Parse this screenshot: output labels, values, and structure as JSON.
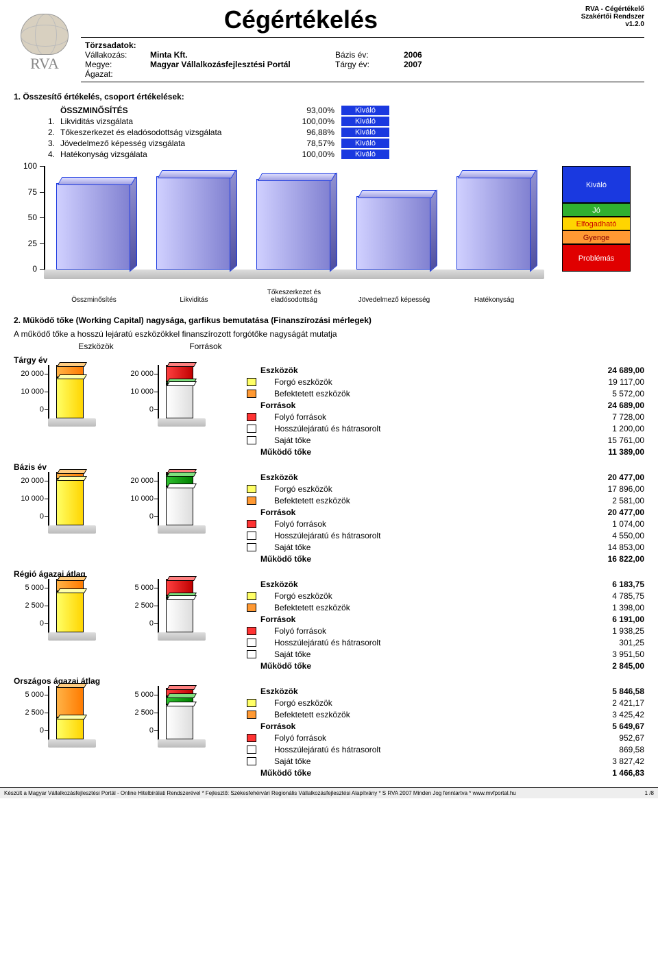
{
  "header": {
    "title": "Cégértékelés",
    "product_line1": "RVA - Cégértékelő",
    "product_line2": "Szakértői Rendszer",
    "version": "v1.2.0",
    "logotext": "RVA"
  },
  "meta": {
    "t_label": "Törzsadatok:",
    "r1l": "Vállakozás:",
    "r1v": "Minta Kft.",
    "r2l": "Megye:",
    "r2v": "Magyar Vállalkozásfejlesztési Portál",
    "r3l": "Ágazat:",
    "r3v": "",
    "r1l2": "Bázis év:",
    "r1v2": "2006",
    "r2l2": "Tárgy év:",
    "r2v2": "2007"
  },
  "section1": {
    "heading": "1. Összesítő értékelés, csoport értékelések:",
    "rows": [
      {
        "num": "",
        "name": "ÖSSZMINŐSÍTÉS",
        "pct": "93,00%",
        "rating": "Kiváló"
      },
      {
        "num": "1.",
        "name": "Likviditás vizsgálata",
        "pct": "100,00%",
        "rating": "Kiváló"
      },
      {
        "num": "2.",
        "name": "Tőkeszerkezet és eladósodottság vizsgálata",
        "pct": "96,88%",
        "rating": "Kiváló"
      },
      {
        "num": "3.",
        "name": "Jövedelmező képesség vizsgálata",
        "pct": "78,57%",
        "rating": "Kiváló"
      },
      {
        "num": "4.",
        "name": "Hatékonyság vizsgálata",
        "pct": "100,00%",
        "rating": "Kiváló"
      }
    ]
  },
  "bigchart": {
    "type": "bar",
    "yticks": [
      "100",
      "75",
      "50",
      "25",
      "0"
    ],
    "ylim": [
      0,
      100
    ],
    "categories": [
      "Összminősítés",
      "Likviditás",
      "Tőkeszerkezet és\neladósodottság",
      "Jövedelmező képesség",
      "Hatékonyság"
    ],
    "values": [
      93,
      100,
      96.88,
      78.57,
      100
    ],
    "bar_color": "#6b6be0",
    "legend": [
      {
        "label": "Kiváló",
        "h": 54,
        "bg": "#1a39e0"
      },
      {
        "label": "Jó",
        "h": 20,
        "bg": "#30b030"
      },
      {
        "label": "Elfogadható",
        "h": 20,
        "bg": "#ffd500",
        "fg": "#c00"
      },
      {
        "label": "Gyenge",
        "h": 20,
        "bg": "#ff9933",
        "fg": "#800"
      },
      {
        "label": "Problémás",
        "h": 40,
        "bg": "#e00000"
      }
    ]
  },
  "section2": {
    "heading": "2. Működő tőke (Working Capital) nagysága, garfikus bemutatása (Finanszírozási mérlegek)",
    "desc": "A működő tőke a hosszú lejáratú eszközökkel finanszírozott forgótőke nagyságát mutatja",
    "col1": "Eszközök",
    "col2": "Források"
  },
  "blocks": [
    {
      "title": "Tárgy év",
      "ticks": [
        "20 000",
        "10 000",
        "0"
      ],
      "ymax": 24689,
      "eszk": [
        {
          "cls": "orange",
          "v": 5572
        },
        {
          "cls": "yellow",
          "v": 19117
        }
      ],
      "forr": [
        {
          "cls": "red",
          "v": 7728
        },
        {
          "cls": "green",
          "v": 1200
        },
        {
          "cls": "white",
          "v": 15761
        }
      ],
      "rows": [
        {
          "bold": true,
          "lbl": "Eszközök",
          "val": "24 689,00"
        },
        {
          "sw": "sw-yellow",
          "ind": 1,
          "lbl": "Forgó eszközök",
          "val": "19 117,00"
        },
        {
          "sw": "sw-orange",
          "ind": 1,
          "lbl": "Befektetett eszközök",
          "val": "5 572,00"
        },
        {
          "bold": true,
          "lbl": "Források",
          "val": "24 689,00"
        },
        {
          "sw": "sw-red",
          "ind": 1,
          "lbl": "Folyó források",
          "val": "7 728,00"
        },
        {
          "sw": "sw-white",
          "ind": 1,
          "lbl": "Hosszúlejáratú és hátrasorolt",
          "val": "1 200,00"
        },
        {
          "sw": "sw-white",
          "ind": 1,
          "lbl": "Saját tőke",
          "val": "15 761,00"
        },
        {
          "bold": true,
          "lbl": "Működő tőke",
          "val": "11 389,00"
        }
      ]
    },
    {
      "title": "Bázis év",
      "ticks": [
        "20 000",
        "10 000",
        "0"
      ],
      "ymax": 20477,
      "eszk": [
        {
          "cls": "orange",
          "v": 2581
        },
        {
          "cls": "yellow",
          "v": 17896
        }
      ],
      "forr": [
        {
          "cls": "red",
          "v": 1074
        },
        {
          "cls": "green",
          "v": 4550
        },
        {
          "cls": "white",
          "v": 14853
        }
      ],
      "rows": [
        {
          "bold": true,
          "lbl": "Eszközök",
          "val": "20 477,00"
        },
        {
          "sw": "sw-yellow",
          "ind": 1,
          "lbl": "Forgó eszközök",
          "val": "17 896,00"
        },
        {
          "sw": "sw-orange",
          "ind": 1,
          "lbl": "Befektetett eszközök",
          "val": "2 581,00"
        },
        {
          "bold": true,
          "lbl": "Források",
          "val": "20 477,00"
        },
        {
          "sw": "sw-red",
          "ind": 1,
          "lbl": "Folyó források",
          "val": "1 074,00"
        },
        {
          "sw": "sw-white",
          "ind": 1,
          "lbl": "Hosszúlejáratú és hátrasorolt",
          "val": "4 550,00"
        },
        {
          "sw": "sw-white",
          "ind": 1,
          "lbl": "Saját tőke",
          "val": "14 853,00"
        },
        {
          "bold": true,
          "lbl": "Működő tőke",
          "val": "16 822,00"
        }
      ]
    },
    {
      "title": "Régió ágazai átlag",
      "ticks": [
        "5 000",
        "2 500",
        "0"
      ],
      "ymax": 6191,
      "eszk": [
        {
          "cls": "orange",
          "v": 1398
        },
        {
          "cls": "yellow",
          "v": 4785.75
        }
      ],
      "forr": [
        {
          "cls": "red",
          "v": 1938.25
        },
        {
          "cls": "green",
          "v": 301.25
        },
        {
          "cls": "white",
          "v": 3951.5
        }
      ],
      "rows": [
        {
          "bold": true,
          "lbl": "Eszközök",
          "val": "6 183,75"
        },
        {
          "sw": "sw-yellow",
          "ind": 1,
          "lbl": "Forgó eszközök",
          "val": "4 785,75"
        },
        {
          "sw": "sw-orange",
          "ind": 1,
          "lbl": "Befektetett eszközök",
          "val": "1 398,00"
        },
        {
          "bold": true,
          "lbl": "Források",
          "val": "6 191,00"
        },
        {
          "sw": "sw-red",
          "ind": 1,
          "lbl": "Folyó források",
          "val": "1 938,25"
        },
        {
          "sw": "sw-white",
          "ind": 1,
          "lbl": "Hosszúlejáratú és hátrasorolt",
          "val": "301,25"
        },
        {
          "sw": "sw-white",
          "ind": 1,
          "lbl": "Saját tőke",
          "val": "3 951,50"
        },
        {
          "bold": true,
          "lbl": "Működő tőke",
          "val": "2 845,00"
        }
      ]
    },
    {
      "title": "Országos ágazai átlag",
      "ticks": [
        "5 000",
        "2 500",
        "0"
      ],
      "ymax": 5846.58,
      "eszk": [
        {
          "cls": "orange",
          "v": 3425.42
        },
        {
          "cls": "yellow",
          "v": 2421.17
        }
      ],
      "forr": [
        {
          "cls": "red",
          "v": 952.67
        },
        {
          "cls": "green",
          "v": 869.58
        },
        {
          "cls": "white",
          "v": 3827.42
        }
      ],
      "rows": [
        {
          "bold": true,
          "lbl": "Eszközök",
          "val": "5 846,58"
        },
        {
          "sw": "sw-yellow",
          "ind": 1,
          "lbl": "Forgó eszközök",
          "val": "2 421,17"
        },
        {
          "sw": "sw-orange",
          "ind": 1,
          "lbl": "Befektetett eszközök",
          "val": "3 425,42"
        },
        {
          "bold": true,
          "lbl": "Források",
          "val": "5 649,67"
        },
        {
          "sw": "sw-red",
          "ind": 1,
          "lbl": "Folyó források",
          "val": "952,67"
        },
        {
          "sw": "sw-white",
          "ind": 1,
          "lbl": "Hosszúlejáratú és hátrasorolt",
          "val": "869,58"
        },
        {
          "sw": "sw-white",
          "ind": 1,
          "lbl": "Saját tőke",
          "val": "3 827,42"
        },
        {
          "bold": true,
          "lbl": "Működő tőke",
          "val": "1 466,83"
        }
      ]
    }
  ],
  "footer": {
    "left": "Készült a Magyar Vállalkozásfejlesztési Portál - Online Hitelbírálati Rendszerével   *   Fejlesztő: Székesfehérvári Regionális Vállalkozásfejlesztési Alapítvány   *   S RVA 2007 Minden Jog fenntartva * www.mvfportal.hu",
    "right": "1 /8"
  }
}
